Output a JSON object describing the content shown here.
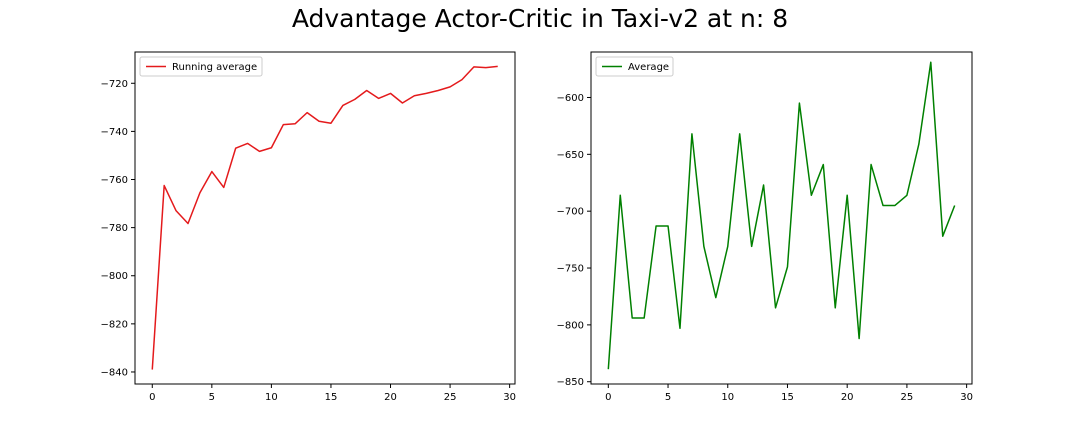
{
  "figure": {
    "suptitle": "Advantage Actor-Critic in Taxi-v2 at n: 8"
  },
  "chart_data": [
    {
      "type": "line",
      "title": "",
      "xlabel": "",
      "ylabel": "",
      "xlim": [
        -1.45,
        30.45
      ],
      "ylim": [
        -845,
        -707
      ],
      "xticks": [
        0,
        5,
        10,
        15,
        20,
        25,
        30
      ],
      "yticks": [
        -840,
        -820,
        -800,
        -780,
        -760,
        -740,
        -720
      ],
      "grid": false,
      "legend_position": "top-left",
      "x": [
        0,
        1,
        2,
        3,
        4,
        5,
        6,
        7,
        8,
        9,
        10,
        11,
        12,
        13,
        14,
        15,
        16,
        17,
        18,
        19,
        20,
        21,
        22,
        23,
        24,
        25,
        26,
        27,
        28,
        29
      ],
      "series": [
        {
          "name": "Running average",
          "color": "#e41a1c",
          "values": [
            -839,
            -762.5,
            -773,
            -778.3,
            -765.5,
            -756.7,
            -763.3,
            -747,
            -745,
            -748.3,
            -746.8,
            -737.2,
            -736.8,
            -732.2,
            -735.8,
            -736.6,
            -729.2,
            -726.7,
            -723,
            -726.3,
            -724.2,
            -728.2,
            -725.2,
            -724.2,
            -723,
            -721.5,
            -718.5,
            -713.2,
            -713.5,
            -713
          ]
        }
      ]
    },
    {
      "type": "line",
      "title": "",
      "xlabel": "",
      "ylabel": "",
      "xlim": [
        -1.45,
        30.45
      ],
      "ylim": [
        -852,
        -560
      ],
      "xticks": [
        0,
        5,
        10,
        15,
        20,
        25,
        30
      ],
      "yticks": [
        -850,
        -800,
        -750,
        -700,
        -650,
        -600
      ],
      "grid": false,
      "legend_position": "top-left",
      "x": [
        0,
        1,
        2,
        3,
        4,
        5,
        6,
        7,
        8,
        9,
        10,
        11,
        12,
        13,
        14,
        15,
        16,
        17,
        18,
        19,
        20,
        21,
        22,
        23,
        24,
        25,
        26,
        27,
        28,
        29
      ],
      "series": [
        {
          "name": "Average",
          "color": "#008000",
          "values": [
            -839,
            -686,
            -794,
            -794,
            -713,
            -713,
            -803,
            -632,
            -731,
            -776,
            -731,
            -632,
            -731,
            -677,
            -785,
            -749,
            -605,
            -686,
            -659,
            -785,
            -686,
            -812,
            -659,
            -695,
            -695,
            -686,
            -641,
            -569,
            -722,
            -695
          ]
        }
      ]
    }
  ]
}
